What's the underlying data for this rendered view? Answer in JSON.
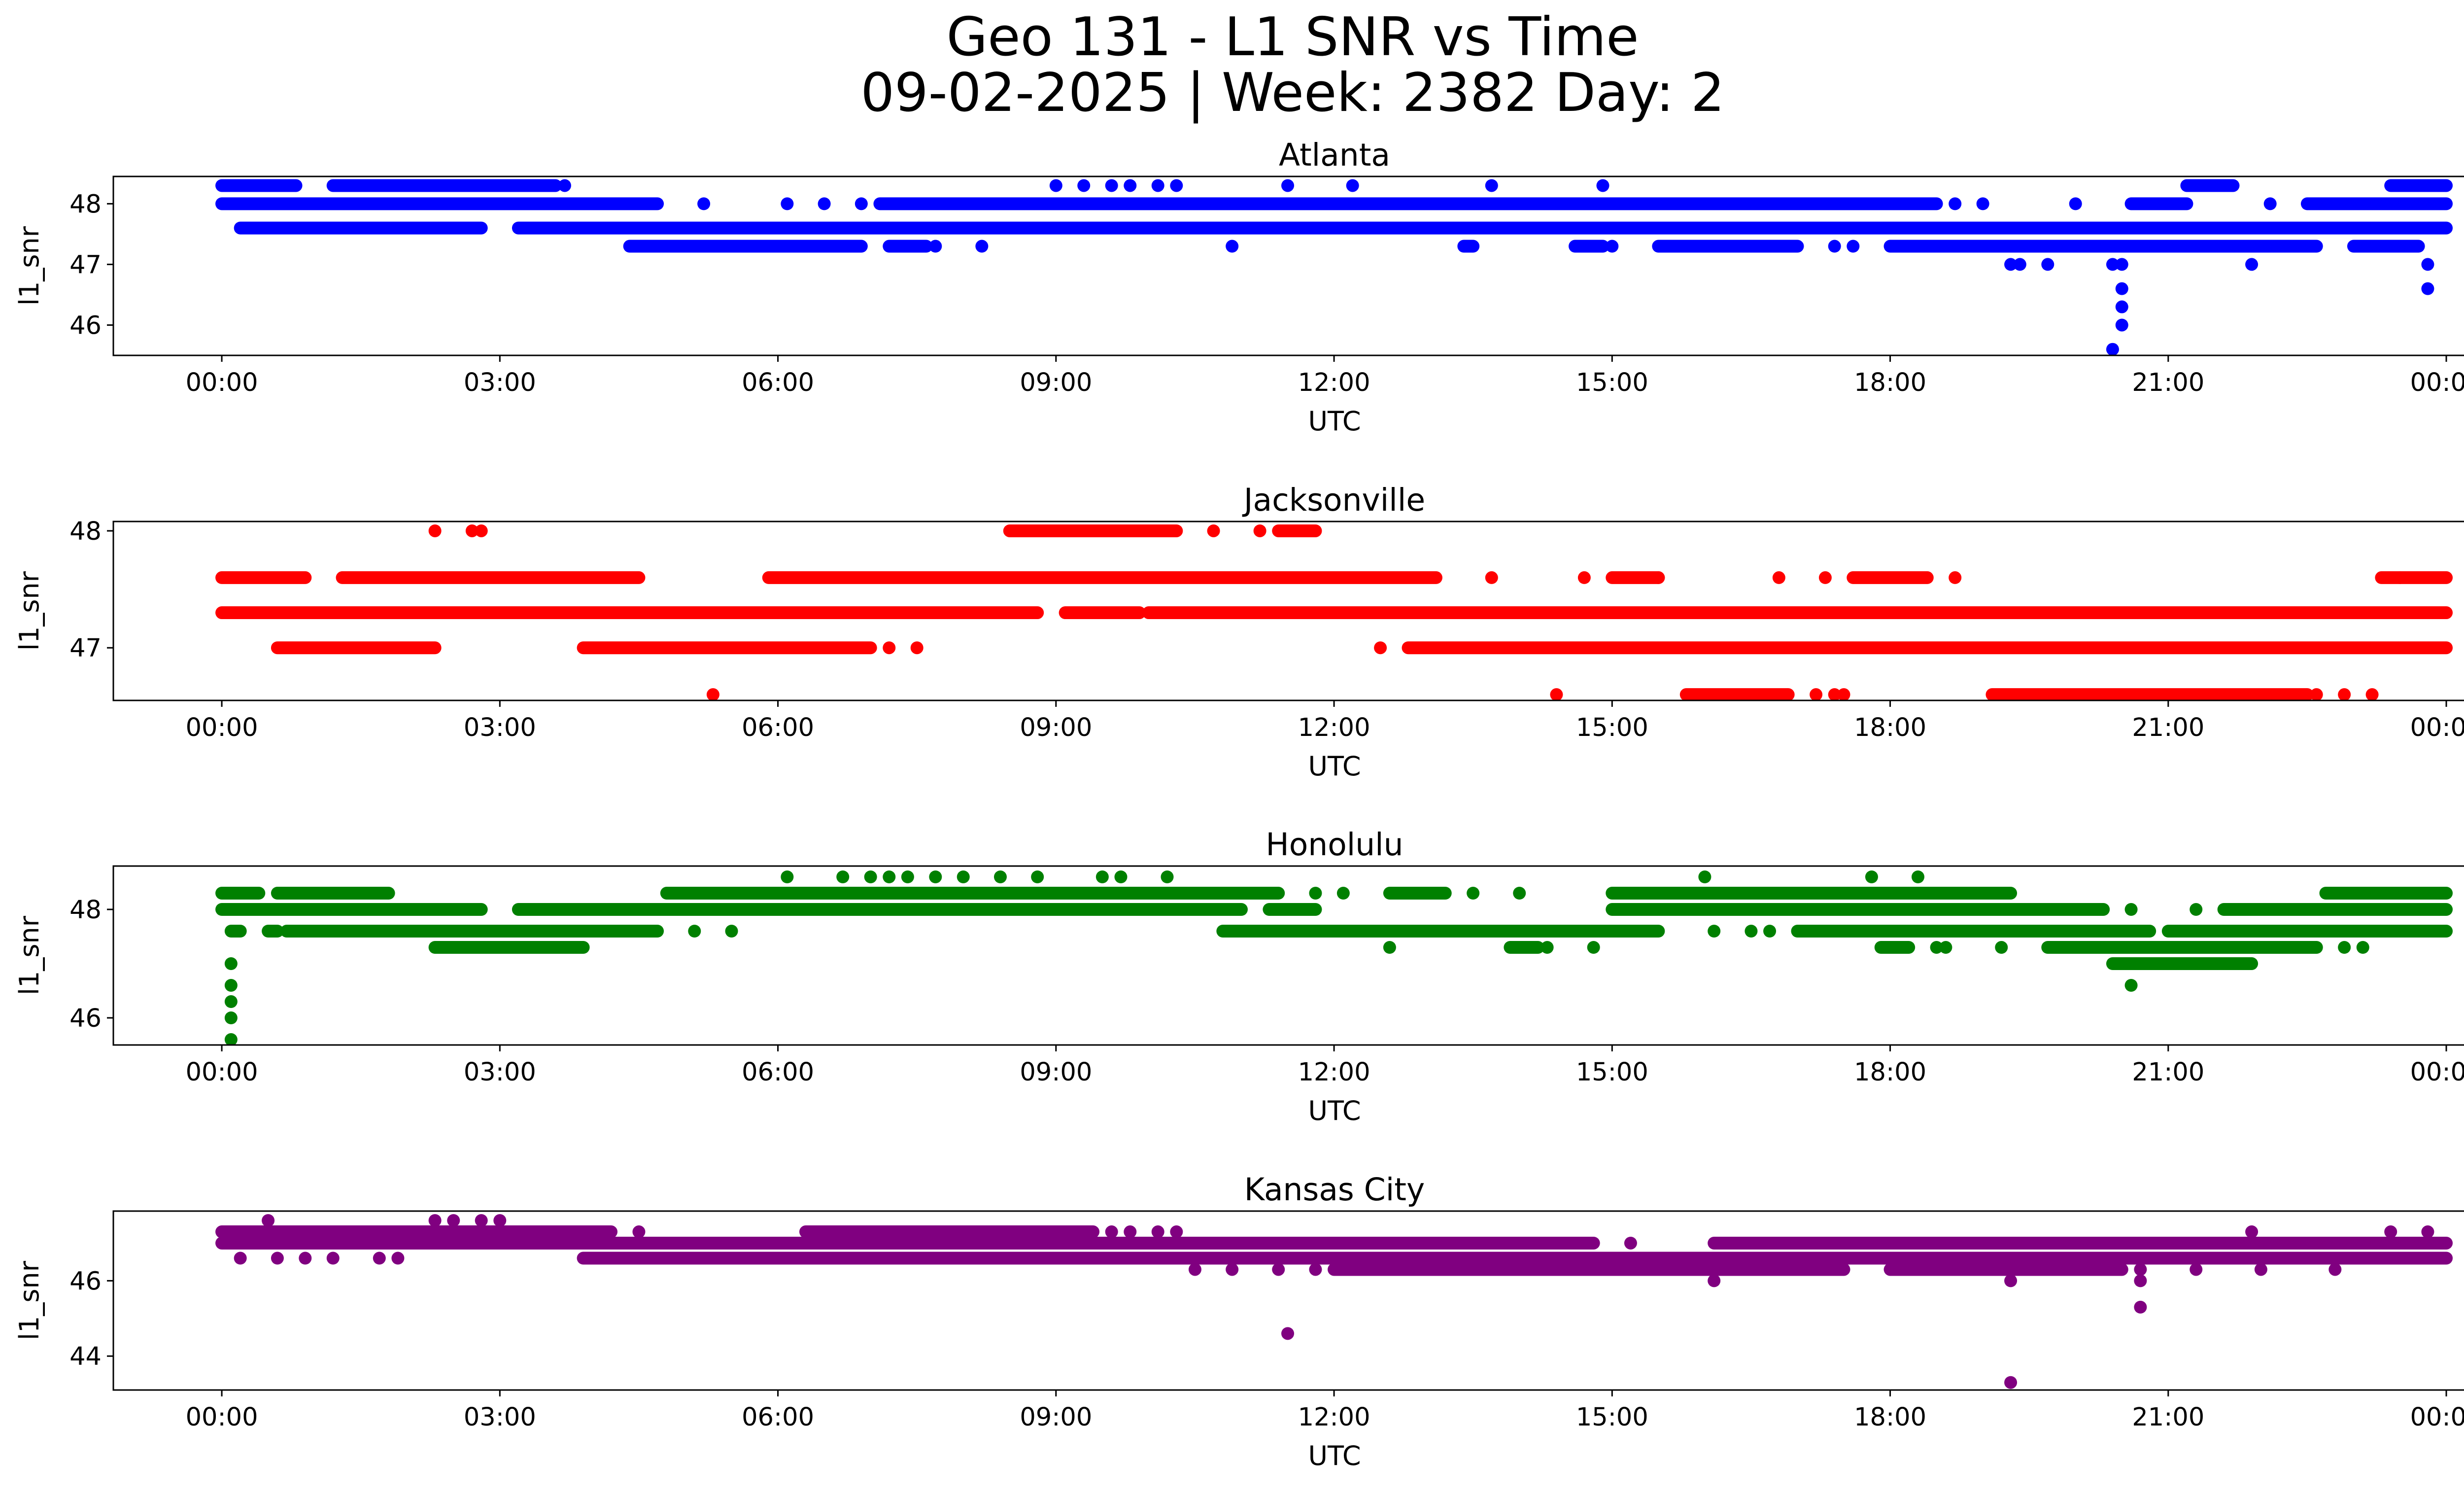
{
  "title_line1": "Geo 131 - L1 SNR vs Time",
  "title_line2": "09-02-2025 | Week: 2382 Day: 2",
  "chart_data": [
    {
      "type": "scatter",
      "title": "Atlanta",
      "xlabel": "UTC",
      "ylabel": "l1_snr",
      "color": "#0000ff",
      "xlim_hours": [
        -1.17,
        25.18
      ],
      "ylim": [
        45.5,
        48.45
      ],
      "yticks": [
        46,
        47,
        48
      ],
      "ytick_labels": [
        "46",
        "47",
        "48"
      ],
      "xticks_hours": [
        0,
        3,
        6,
        9,
        12,
        15,
        18,
        21,
        24
      ],
      "xtick_labels": [
        "00:00",
        "03:00",
        "06:00",
        "09:00",
        "12:00",
        "15:00",
        "18:00",
        "21:00",
        "00:00"
      ],
      "bands": [
        {
          "y": 48.3,
          "segments": [
            [
              0,
              0.8
            ],
            [
              1.2,
              3.6
            ],
            [
              21.2,
              21.7
            ],
            [
              23.4,
              24
            ]
          ]
        },
        {
          "y": 48.0,
          "segments": [
            [
              0,
              4.7
            ],
            [
              7.1,
              18.5
            ],
            [
              20.6,
              21.2
            ],
            [
              22.5,
              24
            ]
          ]
        },
        {
          "y": 47.6,
          "segments": [
            [
              0.2,
              2.8
            ],
            [
              3.2,
              24
            ]
          ]
        },
        {
          "y": 47.3,
          "segments": [
            [
              4.4,
              6.9
            ],
            [
              7.2,
              7.6
            ],
            [
              13.4,
              13.5
            ],
            [
              14.6,
              14.9
            ],
            [
              15.5,
              17.0
            ],
            [
              18.0,
              22.6
            ],
            [
              23.0,
              23.7
            ]
          ]
        }
      ],
      "points": [
        [
          3.7,
          48.3
        ],
        [
          9.0,
          48.3
        ],
        [
          9.3,
          48.3
        ],
        [
          9.6,
          48.3
        ],
        [
          9.8,
          48.3
        ],
        [
          10.1,
          48.3
        ],
        [
          10.3,
          48.3
        ],
        [
          11.5,
          48.3
        ],
        [
          12.2,
          48.3
        ],
        [
          13.7,
          48.3
        ],
        [
          14.9,
          48.3
        ],
        [
          5.2,
          48.0
        ],
        [
          6.1,
          48.0
        ],
        [
          6.5,
          48.0
        ],
        [
          6.9,
          48.0
        ],
        [
          18.7,
          48.0
        ],
        [
          19.0,
          48.0
        ],
        [
          20.0,
          48.0
        ],
        [
          22.1,
          48.0
        ],
        [
          7.7,
          47.3
        ],
        [
          8.2,
          47.3
        ],
        [
          10.9,
          47.3
        ],
        [
          15.0,
          47.3
        ],
        [
          17.4,
          47.3
        ],
        [
          17.6,
          47.3
        ],
        [
          19.3,
          47.0
        ],
        [
          19.4,
          47.0
        ],
        [
          19.7,
          47.0
        ],
        [
          20.4,
          47.0
        ],
        [
          20.5,
          47.0
        ],
        [
          21.9,
          47.0
        ],
        [
          23.8,
          47.0
        ],
        [
          20.5,
          46.6
        ],
        [
          23.8,
          46.6
        ],
        [
          20.5,
          46.3
        ],
        [
          20.5,
          46.0
        ],
        [
          20.4,
          45.6
        ]
      ]
    },
    {
      "type": "scatter",
      "title": "Jacksonville",
      "xlabel": "UTC",
      "ylabel": "l1_snr",
      "color": "#ff0000",
      "xlim_hours": [
        -1.17,
        25.18
      ],
      "ylim": [
        46.55,
        48.08
      ],
      "yticks": [
        47,
        48
      ],
      "ytick_labels": [
        "47",
        "48"
      ],
      "xticks_hours": [
        0,
        3,
        6,
        9,
        12,
        15,
        18,
        21,
        24
      ],
      "xtick_labels": [
        "00:00",
        "03:00",
        "06:00",
        "09:00",
        "12:00",
        "15:00",
        "18:00",
        "21:00",
        "00:00"
      ],
      "bands": [
        {
          "y": 48.0,
          "segments": [
            [
              8.5,
              10.3
            ],
            [
              11.4,
              11.8
            ]
          ]
        },
        {
          "y": 47.6,
          "segments": [
            [
              0,
              0.9
            ],
            [
              1.3,
              4.5
            ],
            [
              5.9,
              13.1
            ],
            [
              15.0,
              15.5
            ],
            [
              17.6,
              18.4
            ],
            [
              23.3,
              24
            ]
          ]
        },
        {
          "y": 47.3,
          "segments": [
            [
              0,
              8.8
            ],
            [
              9.1,
              9.9
            ],
            [
              10.0,
              24
            ]
          ]
        },
        {
          "y": 47.0,
          "segments": [
            [
              0.6,
              2.3
            ],
            [
              3.9,
              7.0
            ],
            [
              12.8,
              24
            ]
          ]
        },
        {
          "y": 46.6,
          "segments": [
            [
              15.8,
              16.9
            ],
            [
              19.1,
              22.5
            ]
          ]
        }
      ],
      "points": [
        [
          2.3,
          48.0
        ],
        [
          2.7,
          48.0
        ],
        [
          2.8,
          48.0
        ],
        [
          10.7,
          48.0
        ],
        [
          11.2,
          48.0
        ],
        [
          13.7,
          47.6
        ],
        [
          14.7,
          47.6
        ],
        [
          15.5,
          47.6
        ],
        [
          16.8,
          47.6
        ],
        [
          17.3,
          47.6
        ],
        [
          18.7,
          47.6
        ],
        [
          23.5,
          47.6
        ],
        [
          7.2,
          47.0
        ],
        [
          7.5,
          47.0
        ],
        [
          12.5,
          47.0
        ],
        [
          5.3,
          46.6
        ],
        [
          14.4,
          46.6
        ],
        [
          17.2,
          46.6
        ],
        [
          17.4,
          46.6
        ],
        [
          17.5,
          46.6
        ],
        [
          22.6,
          46.6
        ],
        [
          22.9,
          46.6
        ],
        [
          23.2,
          46.6
        ]
      ]
    },
    {
      "type": "scatter",
      "title": "Honolulu",
      "xlabel": "UTC",
      "ylabel": "l1_snr",
      "color": "#008000",
      "xlim_hours": [
        -1.17,
        25.18
      ],
      "ylim": [
        45.5,
        48.8
      ],
      "yticks": [
        46,
        48
      ],
      "ytick_labels": [
        "46",
        "48"
      ],
      "xticks_hours": [
        0,
        3,
        6,
        9,
        12,
        15,
        18,
        21,
        24
      ],
      "xtick_labels": [
        "00:00",
        "03:00",
        "06:00",
        "09:00",
        "12:00",
        "15:00",
        "18:00",
        "21:00",
        "00:00"
      ],
      "bands": [
        {
          "y": 48.3,
          "segments": [
            [
              0,
              0.4
            ],
            [
              0.6,
              1.8
            ],
            [
              4.8,
              11.4
            ],
            [
              12.6,
              13.2
            ],
            [
              15.0,
              19.3
            ],
            [
              22.7,
              24
            ]
          ]
        },
        {
          "y": 48.0,
          "segments": [
            [
              0,
              2.8
            ],
            [
              3.2,
              11.0
            ],
            [
              11.3,
              11.8
            ],
            [
              15.0,
              20.3
            ],
            [
              21.6,
              24
            ]
          ]
        },
        {
          "y": 47.6,
          "segments": [
            [
              0.1,
              0.2
            ],
            [
              0.5,
              0.6
            ],
            [
              0.7,
              4.7
            ],
            [
              10.8,
              15.5
            ],
            [
              17.0,
              20.8
            ],
            [
              21.0,
              24
            ]
          ]
        },
        {
          "y": 47.3,
          "segments": [
            [
              2.3,
              3.9
            ],
            [
              13.9,
              14.2
            ],
            [
              17.9,
              18.2
            ],
            [
              19.7,
              22.6
            ]
          ]
        },
        {
          "y": 47.0,
          "segments": [
            [
              20.4,
              21.9
            ]
          ]
        }
      ],
      "points": [
        [
          6.1,
          48.6
        ],
        [
          6.7,
          48.6
        ],
        [
          7.0,
          48.6
        ],
        [
          7.2,
          48.6
        ],
        [
          7.4,
          48.6
        ],
        [
          7.7,
          48.6
        ],
        [
          8.0,
          48.6
        ],
        [
          8.4,
          48.6
        ],
        [
          8.8,
          48.6
        ],
        [
          9.5,
          48.6
        ],
        [
          9.7,
          48.6
        ],
        [
          10.2,
          48.6
        ],
        [
          16.0,
          48.6
        ],
        [
          17.8,
          48.6
        ],
        [
          18.3,
          48.6
        ],
        [
          11.8,
          48.3
        ],
        [
          12.1,
          48.3
        ],
        [
          13.5,
          48.3
        ],
        [
          14.0,
          48.3
        ],
        [
          20.6,
          48.0
        ],
        [
          21.3,
          48.0
        ],
        [
          5.1,
          47.6
        ],
        [
          5.5,
          47.6
        ],
        [
          16.1,
          47.6
        ],
        [
          16.5,
          47.6
        ],
        [
          16.7,
          47.6
        ],
        [
          12.6,
          47.3
        ],
        [
          14.3,
          47.3
        ],
        [
          14.8,
          47.3
        ],
        [
          18.5,
          47.3
        ],
        [
          18.6,
          47.3
        ],
        [
          19.2,
          47.3
        ],
        [
          22.9,
          47.3
        ],
        [
          23.1,
          47.3
        ],
        [
          0.1,
          47.0
        ],
        [
          20.6,
          46.6
        ],
        [
          0.1,
          46.6
        ],
        [
          0.1,
          46.3
        ],
        [
          0.1,
          46.0
        ],
        [
          0.1,
          45.6
        ]
      ]
    },
    {
      "type": "scatter",
      "title": "Kansas City",
      "xlabel": "UTC",
      "ylabel": "l1_snr",
      "color": "#800080",
      "xlim_hours": [
        -1.17,
        25.18
      ],
      "ylim": [
        43.1,
        47.85
      ],
      "yticks": [
        44,
        46
      ],
      "ytick_labels": [
        "44",
        "46"
      ],
      "xticks_hours": [
        0,
        3,
        6,
        9,
        12,
        15,
        18,
        21,
        24
      ],
      "xtick_labels": [
        "00:00",
        "03:00",
        "06:00",
        "09:00",
        "12:00",
        "15:00",
        "18:00",
        "21:00",
        "00:00"
      ],
      "bands": [
        {
          "y": 47.3,
          "segments": [
            [
              0,
              4.2
            ],
            [
              6.3,
              9.4
            ]
          ]
        },
        {
          "y": 47.0,
          "segments": [
            [
              0,
              14.8
            ],
            [
              16.1,
              24
            ]
          ]
        },
        {
          "y": 46.6,
          "segments": [
            [
              3.9,
              24
            ]
          ]
        },
        {
          "y": 46.3,
          "segments": [
            [
              12.0,
              17.5
            ],
            [
              18.0,
              20.5
            ]
          ]
        }
      ],
      "points": [
        [
          0.5,
          47.6
        ],
        [
          2.3,
          47.6
        ],
        [
          2.5,
          47.6
        ],
        [
          2.8,
          47.6
        ],
        [
          3.0,
          47.6
        ],
        [
          4.5,
          47.3
        ],
        [
          9.6,
          47.3
        ],
        [
          9.8,
          47.3
        ],
        [
          10.1,
          47.3
        ],
        [
          10.3,
          47.3
        ],
        [
          21.9,
          47.3
        ],
        [
          23.4,
          47.3
        ],
        [
          23.8,
          47.3
        ],
        [
          15.2,
          47.0
        ],
        [
          0.2,
          46.6
        ],
        [
          0.6,
          46.6
        ],
        [
          0.9,
          46.6
        ],
        [
          1.2,
          46.6
        ],
        [
          1.7,
          46.6
        ],
        [
          1.9,
          46.6
        ],
        [
          10.5,
          46.3
        ],
        [
          10.9,
          46.3
        ],
        [
          11.4,
          46.3
        ],
        [
          11.8,
          46.3
        ],
        [
          20.7,
          46.3
        ],
        [
          21.3,
          46.3
        ],
        [
          22.0,
          46.3
        ],
        [
          22.8,
          46.3
        ],
        [
          16.1,
          46.0
        ],
        [
          19.3,
          46.0
        ],
        [
          20.7,
          46.0
        ],
        [
          20.7,
          45.3
        ],
        [
          11.5,
          44.6
        ],
        [
          19.3,
          43.3
        ]
      ]
    }
  ]
}
